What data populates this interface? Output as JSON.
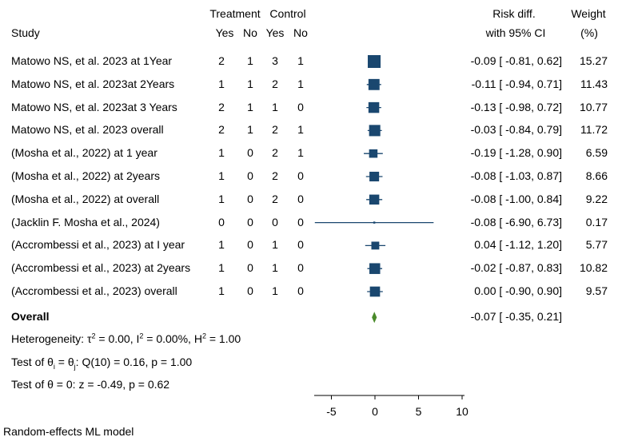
{
  "header": {
    "study": "Study",
    "treatment": "Treatment",
    "control": "Control",
    "yes": "Yes",
    "no": "No",
    "risk_diff": "Risk diff.",
    "ci": "with 95% CI",
    "weight": "Weight",
    "weight_unit": "(%)"
  },
  "rows": [
    {
      "study": "Matowo NS, et al.  2023 at 1Year",
      "t_yes": "2",
      "t_no": "1",
      "c_yes": "3",
      "c_no": "1",
      "ci_text": "-0.09 [ -0.81,  0.62]",
      "weight": "15.27"
    },
    {
      "study": "Matowo NS, et al.  2023at 2Years",
      "t_yes": "1",
      "t_no": "1",
      "c_yes": "2",
      "c_no": "1",
      "ci_text": "-0.11 [ -0.94,  0.71]",
      "weight": "11.43"
    },
    {
      "study": "Matowo NS, et al.  2023at 3 Years",
      "t_yes": "2",
      "t_no": "1",
      "c_yes": "1",
      "c_no": "0",
      "ci_text": "-0.13 [ -0.98,  0.72]",
      "weight": "10.77"
    },
    {
      "study": "Matowo NS, et al.  2023 overall",
      "t_yes": "2",
      "t_no": "1",
      "c_yes": "2",
      "c_no": "1",
      "ci_text": "-0.03 [ -0.84,  0.79]",
      "weight": "11.72"
    },
    {
      "study": "(Mosha et al., 2022) at 1 year",
      "t_yes": "1",
      "t_no": "0",
      "c_yes": "2",
      "c_no": "1",
      "ci_text": "-0.19 [ -1.28,  0.90]",
      "weight": "6.59"
    },
    {
      "study": "(Mosha et al., 2022) at  2years",
      "t_yes": "1",
      "t_no": "0",
      "c_yes": "2",
      "c_no": "0",
      "ci_text": "-0.08 [ -1.03,  0.87]",
      "weight": "8.66"
    },
    {
      "study": "(Mosha et al., 2022) at overall",
      "t_yes": "1",
      "t_no": "0",
      "c_yes": "2",
      "c_no": "0",
      "ci_text": "-0.08 [ -1.00,  0.84]",
      "weight": "9.22"
    },
    {
      "study": "(Jacklin F. Mosha et al., 2024)",
      "t_yes": "0",
      "t_no": "0",
      "c_yes": "0",
      "c_no": "0",
      "ci_text": "-0.08 [ -6.90,  6.73]",
      "weight": "0.17"
    },
    {
      "study": "(Accrombessi et al., 2023)  at I year",
      "t_yes": "1",
      "t_no": "0",
      "c_yes": "1",
      "c_no": "0",
      "ci_text": "0.04 [ -1.12,  1.20]",
      "weight": "5.77"
    },
    {
      "study": "(Accrombessi et al., 2023)  at 2years",
      "t_yes": "1",
      "t_no": "0",
      "c_yes": "1",
      "c_no": "0",
      "ci_text": "-0.02 [ -0.87,  0.83]",
      "weight": "10.82"
    },
    {
      "study": "(Accrombessi et al., 2023)  overall",
      "t_yes": "1",
      "t_no": "0",
      "c_yes": "1",
      "c_no": "0",
      "ci_text": "0.00 [ -0.90,  0.90]",
      "weight": "9.57"
    }
  ],
  "overall": {
    "label": "Overall",
    "ci_text": "-0.07 [ -0.35,  0.21]"
  },
  "heterogeneity": {
    "prefix": "Heterogeneity: τ",
    "tau_sq": "= 0.00, I",
    "i_sq": "= 0.00%, H",
    "h_sq": "= 1.00",
    "sup": "2"
  },
  "test_theta_i": {
    "prefix": "Test of θ",
    "sub_i": "i",
    "eq": " = θ",
    "sub_j": "j",
    "rest": ": Q(10) = 0.16, p = 1.00"
  },
  "test_theta": "Test of θ = 0: z = -0.49, p = 0.62",
  "footer": "Random-effects ML model",
  "colors": {
    "marker": "#1a476f",
    "overall": "#4a8a2a"
  },
  "chart_data": {
    "type": "forest",
    "x_ticks": [
      -5,
      0,
      5,
      10
    ],
    "x_tick_labels": [
      "-5",
      "0",
      "5",
      "10"
    ],
    "xlim": [
      -7,
      10
    ],
    "studies": [
      {
        "est": -0.09,
        "lo": -0.81,
        "hi": 0.62,
        "w": 15.27
      },
      {
        "est": -0.11,
        "lo": -0.94,
        "hi": 0.71,
        "w": 11.43
      },
      {
        "est": -0.13,
        "lo": -0.98,
        "hi": 0.72,
        "w": 10.77
      },
      {
        "est": -0.03,
        "lo": -0.84,
        "hi": 0.79,
        "w": 11.72
      },
      {
        "est": -0.19,
        "lo": -1.28,
        "hi": 0.9,
        "w": 6.59
      },
      {
        "est": -0.08,
        "lo": -1.03,
        "hi": 0.87,
        "w": 8.66
      },
      {
        "est": -0.08,
        "lo": -1.0,
        "hi": 0.84,
        "w": 9.22
      },
      {
        "est": -0.08,
        "lo": -6.9,
        "hi": 6.73,
        "w": 0.17
      },
      {
        "est": 0.04,
        "lo": -1.12,
        "hi": 1.2,
        "w": 5.77
      },
      {
        "est": -0.02,
        "lo": -0.87,
        "hi": 0.83,
        "w": 10.82
      },
      {
        "est": 0.0,
        "lo": -0.9,
        "hi": 0.9,
        "w": 9.57
      }
    ],
    "overall": {
      "est": -0.07,
      "lo": -0.35,
      "hi": 0.21
    }
  }
}
